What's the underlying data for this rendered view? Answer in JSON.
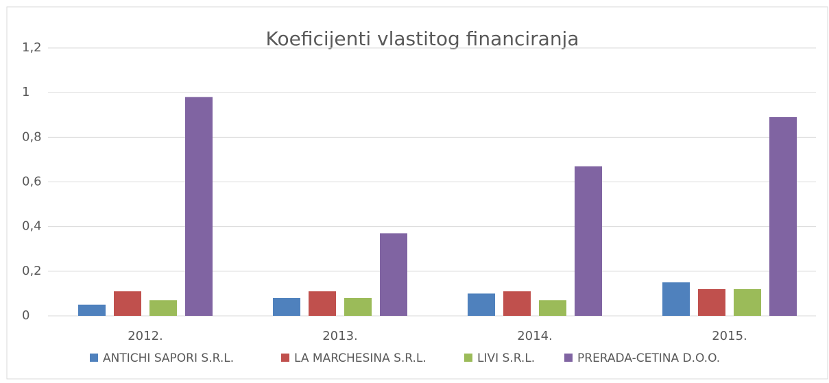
{
  "chart_data": {
    "type": "bar",
    "title": "Koeficijenti vlastitog financiranja",
    "categories": [
      "2012.",
      "2013.",
      "2014.",
      "2015."
    ],
    "series": [
      {
        "name": "ANTICHI SAPORI S.R.L.",
        "color": "#4f81bd",
        "values": [
          0.05,
          0.08,
          0.1,
          0.15
        ]
      },
      {
        "name": "LA MARCHESINA S.R.L.",
        "color": "#c0504d",
        "values": [
          0.11,
          0.11,
          0.11,
          0.12
        ]
      },
      {
        "name": "LIVI S.R.L.",
        "color": "#9bbb59",
        "values": [
          0.07,
          0.08,
          0.07,
          0.12
        ]
      },
      {
        "name": "PRERADA-CETINA D.O.O.",
        "color": "#8064a2",
        "values": [
          0.98,
          0.37,
          0.67,
          0.89
        ]
      }
    ],
    "ylim": [
      0,
      1.2
    ],
    "yticks": [
      0,
      {
        "value": 0.2,
        "label": "0,2"
      },
      {
        "value": 0.4,
        "label": "0,4"
      },
      {
        "value": 0.6,
        "label": "0,6"
      },
      {
        "value": 0.8,
        "label": "0,8"
      },
      1,
      {
        "value": 1.2,
        "label": "1,2"
      }
    ],
    "grid": true,
    "legend": "bottom"
  }
}
